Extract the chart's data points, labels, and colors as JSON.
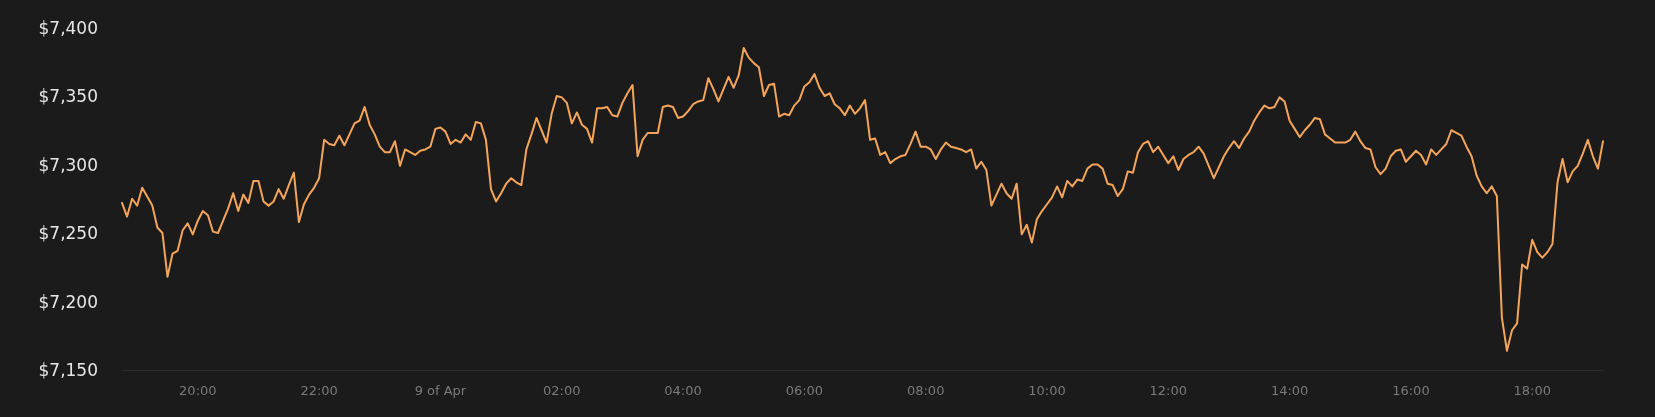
{
  "chart_data": {
    "type": "line",
    "xlim": [
      "--04-08T18:45",
      "--04-09T19:10"
    ],
    "xticks": [
      {
        "value": "--04-08T20:00",
        "label": "20:00"
      },
      {
        "value": "--04-08T22:00",
        "label": "22:00"
      },
      {
        "value": "--04-09T00:00",
        "label": "9 of Apr"
      },
      {
        "value": "--04-09T02:00",
        "label": "02:00"
      },
      {
        "value": "--04-09T04:00",
        "label": "04:00"
      },
      {
        "value": "--04-09T06:00",
        "label": "06:00"
      },
      {
        "value": "--04-09T08:00",
        "label": "08:00"
      },
      {
        "value": "--04-09T10:00",
        "label": "10:00"
      },
      {
        "value": "--04-09T12:00",
        "label": "12:00"
      },
      {
        "value": "--04-09T14:00",
        "label": "14:00"
      },
      {
        "value": "--04-09T16:00",
        "label": "16:00"
      },
      {
        "value": "--04-09T18:00",
        "label": "18:00"
      }
    ],
    "ylim": [
      7150,
      7400
    ],
    "yticks": [
      {
        "value": 7150,
        "label": "$7,150"
      },
      {
        "value": 7200,
        "label": "$7,200"
      },
      {
        "value": 7250,
        "label": "$7,250"
      },
      {
        "value": 7300,
        "label": "$7,300"
      },
      {
        "value": 7350,
        "label": "$7,350"
      },
      {
        "value": 7400,
        "label": "$7,400"
      }
    ],
    "grid": false,
    "marker": "none",
    "line_style": "solid",
    "series": [
      {
        "color": "#f5a55a",
        "x": [
          "--04-08T18:45",
          "--04-08T18:50",
          "--04-08T18:55",
          "--04-08T19:00",
          "--04-08T19:05",
          "--04-08T19:15",
          "--04-08T19:20",
          "--04-08T19:25",
          "--04-08T19:30",
          "--04-08T19:35",
          "--04-08T19:40",
          "--04-08T19:45",
          "--04-08T19:50",
          "--04-08T19:55",
          "--04-08T20:00",
          "--04-08T20:05",
          "--04-08T20:10",
          "--04-08T20:15",
          "--04-08T20:20",
          "--04-08T20:25",
          "--04-08T20:30",
          "--04-08T20:35",
          "--04-08T20:40",
          "--04-08T20:45",
          "--04-08T20:50",
          "--04-08T20:55",
          "--04-08T21:00",
          "--04-08T21:05",
          "--04-08T21:10",
          "--04-08T21:15",
          "--04-08T21:20",
          "--04-08T21:25",
          "--04-08T21:30",
          "--04-08T21:35",
          "--04-08T21:40",
          "--04-08T21:45",
          "--04-08T21:50",
          "--04-08T21:55",
          "--04-08T22:00",
          "--04-08T22:05",
          "--04-08T22:10",
          "--04-08T22:15",
          "--04-08T22:20",
          "--04-08T22:25",
          "--04-08T22:30",
          "--04-08T22:35",
          "--04-08T22:40",
          "--04-08T22:45",
          "--04-08T22:50",
          "--04-08T22:55",
          "--04-08T23:00",
          "--04-08T23:05",
          "--04-08T23:10",
          "--04-08T23:15",
          "--04-08T23:20",
          "--04-08T23:25",
          "--04-08T23:30",
          "--04-08T23:35",
          "--04-08T23:40",
          "--04-08T23:45",
          "--04-08T23:50",
          "--04-08T23:55",
          "--04-09T00:00",
          "--04-09T00:05",
          "--04-09T00:10",
          "--04-09T00:15",
          "--04-09T00:20",
          "--04-09T00:25",
          "--04-09T00:30",
          "--04-09T00:35",
          "--04-09T00:40",
          "--04-09T00:45",
          "--04-09T00:50",
          "--04-09T00:55",
          "--04-09T01:00",
          "--04-09T01:05",
          "--04-09T01:10",
          "--04-09T01:15",
          "--04-09T01:20",
          "--04-09T01:25",
          "--04-09T01:30",
          "--04-09T01:35",
          "--04-09T01:40",
          "--04-09T01:45",
          "--04-09T01:50",
          "--04-09T01:55",
          "--04-09T02:00",
          "--04-09T02:05",
          "--04-09T02:10",
          "--04-09T02:15",
          "--04-09T02:20",
          "--04-09T02:25",
          "--04-09T02:30",
          "--04-09T02:35",
          "--04-09T02:40",
          "--04-09T02:45",
          "--04-09T02:50",
          "--04-09T02:55",
          "--04-09T03:00",
          "--04-09T03:05",
          "--04-09T03:10",
          "--04-09T03:15",
          "--04-09T03:20",
          "--04-09T03:25",
          "--04-09T03:30",
          "--04-09T03:35",
          "--04-09T03:40",
          "--04-09T03:45",
          "--04-09T03:50",
          "--04-09T03:55",
          "--04-09T04:00",
          "--04-09T04:05",
          "--04-09T04:10",
          "--04-09T04:15",
          "--04-09T04:20",
          "--04-09T04:25",
          "--04-09T04:30",
          "--04-09T04:35",
          "--04-09T04:40",
          "--04-09T04:45",
          "--04-09T04:50",
          "--04-09T04:55",
          "--04-09T05:00",
          "--04-09T05:05",
          "--04-09T05:10",
          "--04-09T05:15",
          "--04-09T05:20",
          "--04-09T05:25",
          "--04-09T05:30",
          "--04-09T05:35",
          "--04-09T05:40",
          "--04-09T05:45",
          "--04-09T05:50",
          "--04-09T05:55",
          "--04-09T06:00",
          "--04-09T06:05",
          "--04-09T06:10",
          "--04-09T06:15",
          "--04-09T06:20",
          "--04-09T06:25",
          "--04-09T06:30",
          "--04-09T06:35",
          "--04-09T06:40",
          "--04-09T06:45",
          "--04-09T06:50",
          "--04-09T06:55",
          "--04-09T07:00",
          "--04-09T07:05",
          "--04-09T07:10",
          "--04-09T07:15",
          "--04-09T07:20",
          "--04-09T07:25",
          "--04-09T07:30",
          "--04-09T07:35",
          "--04-09T07:40",
          "--04-09T07:45",
          "--04-09T07:50",
          "--04-09T07:55",
          "--04-09T08:00",
          "--04-09T08:05",
          "--04-09T08:10",
          "--04-09T08:15",
          "--04-09T08:20",
          "--04-09T08:25",
          "--04-09T08:30",
          "--04-09T08:35",
          "--04-09T08:40",
          "--04-09T08:45",
          "--04-09T08:50",
          "--04-09T08:55",
          "--04-09T09:00",
          "--04-09T09:05",
          "--04-09T09:10",
          "--04-09T09:15",
          "--04-09T09:20",
          "--04-09T09:25",
          "--04-09T09:30",
          "--04-09T09:35",
          "--04-09T09:40",
          "--04-09T09:45",
          "--04-09T09:50",
          "--04-09T09:55",
          "--04-09T10:00",
          "--04-09T10:05",
          "--04-09T10:10",
          "--04-09T10:15",
          "--04-09T10:20",
          "--04-09T10:25",
          "--04-09T10:30",
          "--04-09T10:35",
          "--04-09T10:40",
          "--04-09T10:45",
          "--04-09T10:50",
          "--04-09T10:55",
          "--04-09T11:00",
          "--04-09T11:05",
          "--04-09T11:10",
          "--04-09T11:15",
          "--04-09T11:20",
          "--04-09T11:25",
          "--04-09T11:30",
          "--04-09T11:35",
          "--04-09T11:40",
          "--04-09T11:45",
          "--04-09T11:50",
          "--04-09T11:55",
          "--04-09T12:00",
          "--04-09T12:05",
          "--04-09T12:10",
          "--04-09T12:15",
          "--04-09T12:20",
          "--04-09T12:25",
          "--04-09T12:30",
          "--04-09T12:35",
          "--04-09T12:40",
          "--04-09T12:45",
          "--04-09T12:50",
          "--04-09T12:55",
          "--04-09T13:00",
          "--04-09T13:05",
          "--04-09T13:10",
          "--04-09T13:15",
          "--04-09T13:20",
          "--04-09T13:25",
          "--04-09T13:30",
          "--04-09T13:35",
          "--04-09T13:40",
          "--04-09T13:45",
          "--04-09T13:50",
          "--04-09T13:55",
          "--04-09T14:00",
          "--04-09T14:05",
          "--04-09T14:10",
          "--04-09T14:15",
          "--04-09T14:20",
          "--04-09T14:25",
          "--04-09T14:30",
          "--04-09T14:35",
          "--04-09T14:40",
          "--04-09T14:45",
          "--04-09T14:50",
          "--04-09T14:55",
          "--04-09T15:00",
          "--04-09T15:05",
          "--04-09T15:10",
          "--04-09T15:15",
          "--04-09T15:20",
          "--04-09T15:25",
          "--04-09T15:30",
          "--04-09T15:35",
          "--04-09T15:40",
          "--04-09T15:45",
          "--04-09T15:50",
          "--04-09T15:55",
          "--04-09T16:00",
          "--04-09T16:05",
          "--04-09T16:10",
          "--04-09T16:15",
          "--04-09T16:20",
          "--04-09T16:25",
          "--04-09T16:30",
          "--04-09T16:35",
          "--04-09T16:40",
          "--04-09T16:45",
          "--04-09T16:50",
          "--04-09T16:55",
          "--04-09T17:00",
          "--04-09T17:05",
          "--04-09T17:10",
          "--04-09T17:15",
          "--04-09T17:20",
          "--04-09T17:25",
          "--04-09T17:30",
          "--04-09T17:35",
          "--04-09T17:40",
          "--04-09T17:45",
          "--04-09T17:50",
          "--04-09T17:55",
          "--04-09T18:00",
          "--04-09T18:05",
          "--04-09T18:10",
          "--04-09T18:15",
          "--04-09T18:20",
          "--04-09T18:25",
          "--04-09T18:30",
          "--04-09T18:35",
          "--04-09T18:40",
          "--04-09T18:45",
          "--04-09T18:50",
          "--04-09T18:55",
          "--04-09T19:00",
          "--04-09T19:05",
          "--04-09T19:10"
        ],
        "values": [
          7272,
          7262,
          7275,
          7270,
          7283,
          7270,
          7254,
          7250,
          7218,
          7235,
          7237,
          7252,
          7257,
          7249,
          7259,
          7266,
          7263,
          7251,
          7250,
          7259,
          7268,
          7279,
          7266,
          7278,
          7272,
          7288,
          7288,
          7273,
          7270,
          7273,
          7282,
          7275,
          7285,
          7294,
          7258,
          7271,
          7278,
          7283,
          7290,
          7318,
          7315,
          7314,
          7321,
          7314,
          7322,
          7330,
          7332,
          7342,
          7329,
          7322,
          7313,
          7309,
          7309,
          7317,
          7299,
          7311,
          7309,
          7307,
          7310,
          7311,
          7313,
          7326,
          7327,
          7324,
          7315,
          7318,
          7316,
          7322,
          7318,
          7331,
          7330,
          7318,
          7282,
          7273,
          7279,
          7286,
          7290,
          7287,
          7285,
          7311,
          7322,
          7334,
          7325,
          7316,
          7337,
          7350,
          7349,
          7345,
          7330,
          7338,
          7329,
          7326,
          7316,
          7341,
          7341,
          7342,
          7336,
          7335,
          7345,
          7352,
          7358,
          7306,
          7318,
          7323,
          7323,
          7323,
          7342,
          7343,
          7342,
          7334,
          7335,
          7339,
          7344,
          7346,
          7347,
          7363,
          7355,
          7346,
          7355,
          7364,
          7356,
          7365,
          7385,
          7378,
          7374,
          7371,
          7350,
          7358,
          7359,
          7335,
          7337,
          7336,
          7343,
          7347,
          7357,
          7360,
          7366,
          7356,
          7350,
          7352,
          7344,
          7341,
          7336,
          7343,
          7337,
          7341,
          7347,
          7318,
          7319,
          7307,
          7309,
          7301,
          7304,
          7306,
          7307,
          7315,
          7324,
          7313,
          7313,
          7311,
          7304,
          7311,
          7316,
          7313,
          7312,
          7311,
          7309,
          7311,
          7297,
          7302,
          7296,
          7270,
          7278,
          7286,
          7279,
          7275,
          7286,
          7249,
          7256,
          7243,
          7260,
          7266,
          7271,
          7276,
          7284,
          7276,
          7288,
          7284,
          7289,
          7288,
          7297,
          7300,
          7300,
          7297,
          7286,
          7285,
          7277,
          7282,
          7295,
          7294,
          7309,
          7315,
          7317,
          7309,
          7313,
          7307,
          7301,
          7306,
          7296,
          7304,
          7307,
          7309,
          7313,
          7308,
          7299,
          7290,
          7298,
          7306,
          7312,
          7317,
          7312,
          7319,
          7324,
          7332,
          7338,
          7343,
          7341,
          7342,
          7349,
          7346,
          7332,
          7326,
          7320,
          7325,
          7329,
          7334,
          7333,
          7322,
          7319,
          7316,
          7316,
          7316,
          7318,
          7324,
          7317,
          7312,
          7311,
          7298,
          7293,
          7297,
          7306,
          7310,
          7311,
          7302,
          7306,
          7310,
          7307,
          7300,
          7311,
          7307,
          7311,
          7315,
          7325,
          7323,
          7321,
          7313,
          7306,
          7292,
          7284,
          7279,
          7284,
          7277,
          7188,
          7164,
          7179,
          7184,
          7227,
          7224,
          7245,
          7236,
          7232,
          7236,
          7242,
          7287,
          7304,
          7287,
          7295,
          7299,
          7308,
          7318,
          7306,
          7297,
          7317
        ]
      }
    ]
  }
}
